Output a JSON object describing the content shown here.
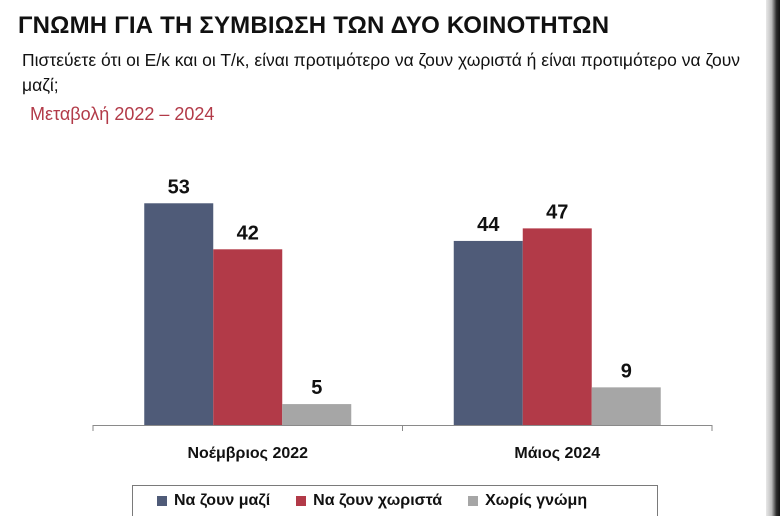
{
  "header": {
    "title": "ΓΝΩΜΗ ΓΙΑ ΤΗ ΣΥΜΒΙΩΣΗ ΤΩΝ ΔΥΟ ΚΟΙΝΟΤΗΤΩΝ",
    "subtitle": "Πιστεύετε ότι οι Ε/κ και οι Τ/κ, είναι προτιμότερο να ζουν χωριστά ή είναι προτιμότερο να ζουν μαζί;",
    "change_label": "Μεταβολή 2022 – 2024"
  },
  "chart_data": {
    "type": "bar",
    "categories": [
      "Νοέμβριος 2022",
      "Μάιος 2024"
    ],
    "series": [
      {
        "name": "Να ζουν μαζί",
        "values": [
          53,
          44
        ],
        "color": "#4f5b78"
      },
      {
        "name": "Να ζουν χωριστά",
        "values": [
          42,
          47
        ],
        "color": "#b23a48"
      },
      {
        "name": "Χωρίς γνώμη",
        "values": [
          5,
          9
        ],
        "color": "#a6a6a6"
      }
    ],
    "ylim": [
      0,
      60
    ],
    "grid": false,
    "legend": "bottom"
  }
}
